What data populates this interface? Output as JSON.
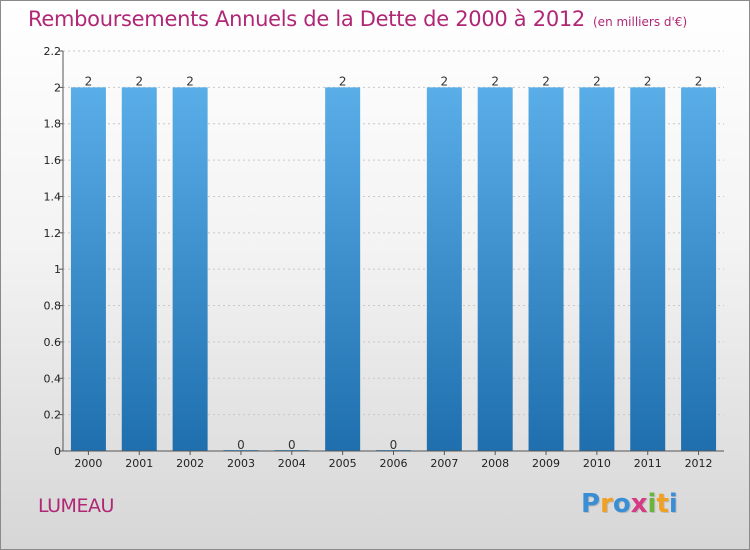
{
  "header": {
    "title": "Remboursements Annuels de la Dette de 2000 à 2012",
    "subtitle": "(en milliers d'€)"
  },
  "footer": {
    "town": "LUMEAU",
    "logo_letters": [
      "P",
      "r",
      "o",
      "x",
      "i",
      "t",
      "i"
    ],
    "logo_colors": [
      "#3a8fd4",
      "#f0a023",
      "#3a8fd4",
      "#d63a85",
      "#6cb33e",
      "#f0a023",
      "#3a8fd4"
    ]
  },
  "colors": {
    "bar_top": "#5aaee8",
    "bar_bottom": "#1f6fae",
    "title": "#b02775"
  },
  "chart_data": {
    "type": "bar",
    "title": "Remboursements Annuels de la Dette de 2000 à 2012",
    "xlabel": "",
    "ylabel": "",
    "categories": [
      "2000",
      "2001",
      "2002",
      "2003",
      "2004",
      "2005",
      "2006",
      "2007",
      "2008",
      "2009",
      "2010",
      "2011",
      "2012"
    ],
    "values": [
      2,
      2,
      2,
      0,
      0,
      2,
      0,
      2,
      2,
      2,
      2,
      2,
      2
    ],
    "data_labels": [
      "2",
      "2",
      "2",
      "0",
      "0",
      "2",
      "0",
      "2",
      "2",
      "2",
      "2",
      "2",
      "2"
    ],
    "ylim": [
      0,
      2.2
    ],
    "yticks": [
      0,
      0.2,
      0.4,
      0.6,
      0.8,
      1,
      1.2,
      1.4,
      1.6,
      1.8,
      2,
      2.2
    ],
    "ytick_labels": [
      "0",
      "0.2",
      "0.4",
      "0.6",
      "0.8",
      "1",
      "1.2",
      "1.4",
      "1.6",
      "1.8",
      "2",
      "2.2"
    ],
    "grid": true,
    "legend": "none"
  }
}
